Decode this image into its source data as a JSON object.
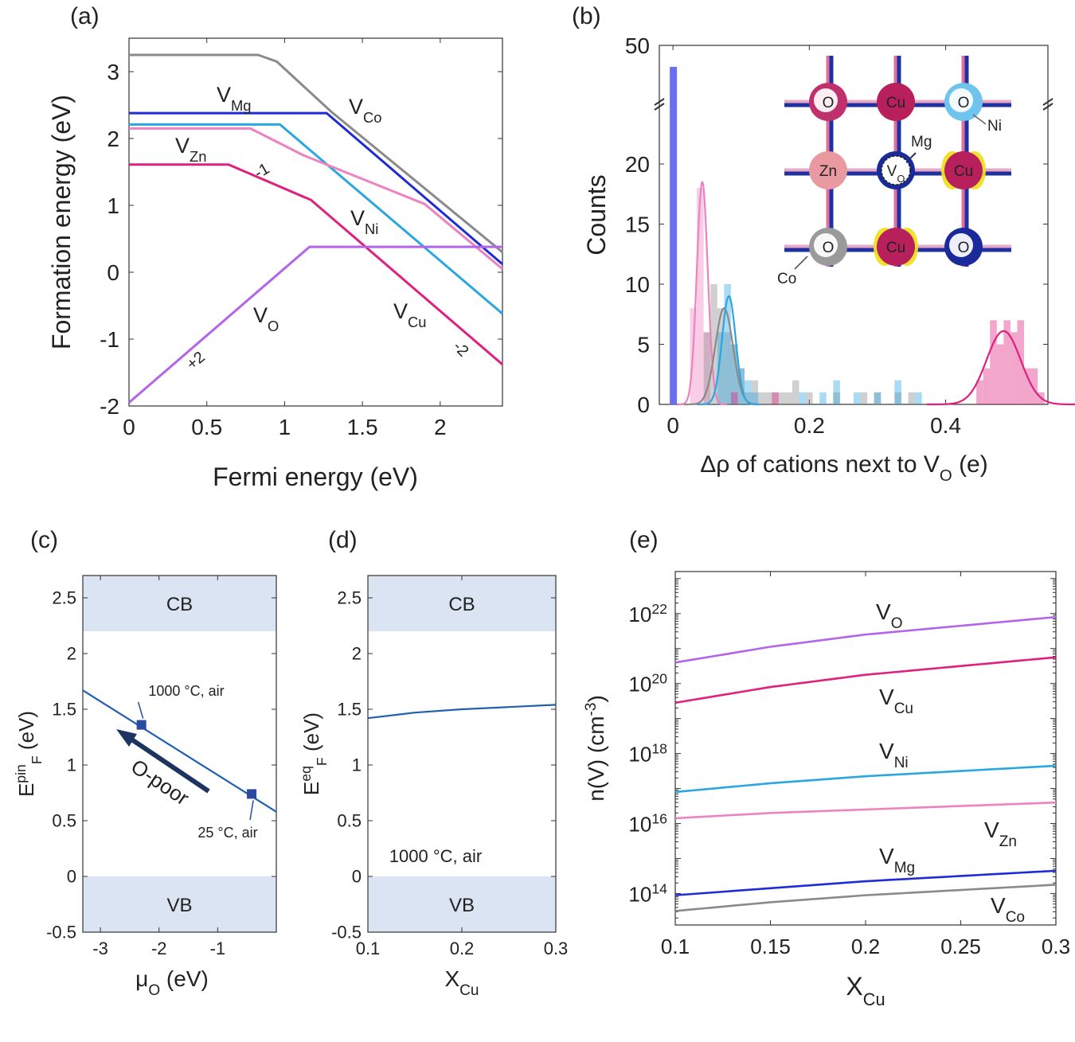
{
  "colors": {
    "Mg": "#1f2bd6",
    "Co": "#8a8a8a",
    "Zn": "#ee82c0",
    "Ni": "#2aa6e0",
    "Cu": "#e0207f",
    "O": "#b464e8",
    "band": "#dbe4f2",
    "blue": "#2060b0",
    "navy": "#1d3461",
    "marker": "#2a4aa0",
    "highlight": "#2040d0"
  },
  "chart_data": [
    {
      "id": "a",
      "panel_label": "(a)",
      "type": "line",
      "xlabel": "Fermi energy (eV)",
      "ylabel": "Formation energy (eV)",
      "xlim": [
        0,
        2.4
      ],
      "ylim": [
        -2,
        3.5
      ],
      "xticks": [
        0,
        0.5,
        1,
        1.5,
        2
      ],
      "xtick_labels": [
        "0",
        "0.5",
        "1",
        "1.5",
        "2"
      ],
      "yticks": [
        -2,
        -1,
        0,
        1,
        2,
        3
      ],
      "ytick_labels": [
        "-2",
        "-1",
        "0",
        "1",
        "2",
        "3"
      ],
      "series": [
        {
          "name": "V_Co",
          "label_main": "V",
          "label_sub": "Co",
          "color": "Co",
          "points": [
            [
              0,
              3.25
            ],
            [
              0.83,
              3.25
            ],
            [
              0.95,
              3.15
            ],
            [
              1.3,
              2.4
            ],
            [
              2.4,
              0.3
            ]
          ]
        },
        {
          "name": "V_Mg",
          "label_main": "V",
          "label_sub": "Mg",
          "color": "Mg",
          "points": [
            [
              0,
              2.38
            ],
            [
              1.27,
              2.38
            ],
            [
              2.4,
              0.12
            ]
          ]
        },
        {
          "name": "V_Ni",
          "label_main": "V",
          "label_sub": "Ni",
          "color": "Ni",
          "points": [
            [
              0,
              2.21
            ],
            [
              0.97,
              2.21
            ],
            [
              2.4,
              -0.62
            ]
          ]
        },
        {
          "name": "V_Zn",
          "label_main": "V",
          "label_sub": "Zn",
          "color": "Zn",
          "points": [
            [
              0,
              2.15
            ],
            [
              0.78,
              2.15
            ],
            [
              1.12,
              1.75
            ],
            [
              1.9,
              1.02
            ],
            [
              2.4,
              0.05
            ]
          ]
        },
        {
          "name": "V_Cu",
          "label_main": "V",
          "label_sub": "Cu",
          "color": "Cu",
          "points": [
            [
              0,
              1.61
            ],
            [
              0.64,
              1.61
            ],
            [
              1.17,
              1.08
            ],
            [
              2.4,
              -1.38
            ]
          ]
        },
        {
          "name": "V_O",
          "label_main": "V",
          "label_sub": "O",
          "color": "O",
          "points": [
            [
              0,
              -1.95
            ],
            [
              1.16,
              0.38
            ],
            [
              2.4,
              0.38
            ]
          ]
        }
      ],
      "annotations": [
        {
          "text": "-1",
          "x": 0.87,
          "y": 1.45,
          "color": "Cu",
          "rotate": -30
        },
        {
          "text": "-2",
          "x": 2.11,
          "y": -1.2,
          "color": "Cu",
          "rotate": 45
        },
        {
          "text": "+2",
          "x": 0.45,
          "y": -1.38,
          "color": "O",
          "rotate": -40
        }
      ]
    },
    {
      "id": "b",
      "panel_label": "(b)",
      "type": "histogram",
      "xlabel_prefix": "Δρ of cations next to V",
      "xlabel_sub": "O",
      "xlabel_suffix": " (e)",
      "ylabel": "Counts",
      "xlim": [
        -0.02,
        0.55
      ],
      "xticks": [
        0,
        0.2,
        0.4
      ],
      "xtick_labels": [
        "0",
        "0.2",
        "0.4"
      ],
      "yticks": [
        0,
        5,
        10,
        15,
        20,
        50
      ],
      "ytick_labels": [
        "0",
        "5",
        "10",
        "15",
        "20",
        "50"
      ],
      "axis_break": "y between 20 and 50",
      "tall_bar": {
        "x": 0.0,
        "counts": 40,
        "color": "#6a6ff0"
      },
      "bin_width": 0.01,
      "histograms": [
        {
          "name": "Zn",
          "color": "Zn",
          "bins": [
            0.03,
            0.04,
            0.05
          ],
          "counts": [
            8,
            18,
            6
          ]
        },
        {
          "name": "Co",
          "color": "Co",
          "bins": [
            0.05,
            0.06,
            0.07,
            0.08,
            0.09,
            0.1,
            0.11,
            0.12,
            0.13,
            0.14,
            0.15,
            0.16,
            0.17,
            0.18,
            0.2,
            0.24,
            0.28,
            0.3,
            0.33,
            0.35
          ],
          "counts": [
            6,
            10,
            8,
            6,
            5,
            3,
            1,
            2,
            1,
            1,
            1,
            1,
            1,
            2,
            1,
            1,
            1,
            1,
            1,
            1
          ]
        },
        {
          "name": "Ni",
          "color": "Ni",
          "bins": [
            0.07,
            0.08,
            0.09,
            0.1,
            0.11,
            0.12,
            0.19,
            0.22,
            0.24,
            0.27,
            0.3,
            0.33,
            0.36
          ],
          "counts": [
            6,
            10,
            5,
            3,
            2,
            1,
            1,
            1,
            2,
            1,
            1,
            2,
            1
          ]
        },
        {
          "name": "Cu",
          "color": "Cu",
          "bins": [
            0.09,
            0.15,
            0.45,
            0.46,
            0.47,
            0.48,
            0.49,
            0.5,
            0.51,
            0.52,
            0.53,
            0.54
          ],
          "counts": [
            1,
            1,
            2,
            3,
            7,
            5,
            7,
            6,
            7,
            3,
            3,
            1
          ]
        }
      ],
      "fits": [
        {
          "name": "Zn",
          "color": "Zn",
          "mu": 0.043,
          "sigma": 0.008,
          "amp": 18.5
        },
        {
          "name": "Co",
          "color": "Co",
          "mu": 0.075,
          "sigma": 0.013,
          "amp": 8
        },
        {
          "name": "Ni",
          "color": "Ni",
          "mu": 0.082,
          "sigma": 0.01,
          "amp": 9
        },
        {
          "name": "Cu",
          "color": "Cu",
          "mu": 0.485,
          "sigma": 0.025,
          "amp": 6.1
        }
      ],
      "inset": {
        "atoms": [
          {
            "label": "O",
            "kind": "O-mix"
          },
          {
            "label": "Cu",
            "kind": "Cu"
          },
          {
            "label": "O",
            "kind": "O-ni"
          },
          {
            "label": "Zn",
            "kind": "Zn"
          },
          {
            "label": "V",
            "label_sub": "O",
            "kind": "vac"
          },
          {
            "label": "Cu",
            "kind": "Cu-lobe"
          },
          {
            "label": "O",
            "kind": "O-co"
          },
          {
            "label": "Cu",
            "kind": "Cu-lobe"
          },
          {
            "label": "O",
            "kind": "O-mg"
          }
        ],
        "callouts": {
          "ni": "Ni",
          "mg": "Mg",
          "co": "Co"
        }
      }
    },
    {
      "id": "c",
      "panel_label": "(c)",
      "type": "line",
      "xlabel_main": "μ",
      "xlabel_sub": "O",
      "xlabel_suffix": " (eV)",
      "ylabel_main": "E",
      "ylabel_sup": "pin",
      "ylabel_sub": "F",
      "ylabel_suffix": " (eV)",
      "xlim": [
        -3.3,
        0
      ],
      "ylim": [
        -0.5,
        2.7
      ],
      "xticks": [
        -3,
        -2,
        -1
      ],
      "xtick_labels": [
        "-3",
        "-2",
        "-1"
      ],
      "yticks": [
        -0.5,
        0,
        0.5,
        1,
        1.5,
        2,
        2.5
      ],
      "ytick_labels": [
        "-0.5",
        "0",
        "0.5",
        "1",
        "1.5",
        "2",
        "2.5"
      ],
      "bands": [
        {
          "label": "CB",
          "from": 2.2,
          "to": 2.7
        },
        {
          "label": "VB",
          "from": -0.5,
          "to": 0
        }
      ],
      "series": [
        {
          "name": "E_F_pin",
          "color": "blue",
          "points": [
            [
              -3.3,
              1.67
            ],
            [
              0,
              0.58
            ]
          ]
        }
      ],
      "markers": [
        {
          "x": -2.3,
          "y": 1.36,
          "label": "1000 °C, air"
        },
        {
          "x": -0.42,
          "y": 0.74,
          "label": "25 °C, air"
        }
      ],
      "arrow_label": "O-poor"
    },
    {
      "id": "d",
      "panel_label": "(d)",
      "type": "line",
      "xlabel_main": "X",
      "xlabel_sub": "Cu",
      "ylabel_main": "E",
      "ylabel_sup": "eq",
      "ylabel_sub": "F",
      "ylabel_suffix": " (eV)",
      "xlim": [
        0.1,
        0.3
      ],
      "ylim": [
        -0.5,
        2.7
      ],
      "xticks": [
        0.1,
        0.2,
        0.3
      ],
      "xtick_labels": [
        "0.1",
        "0.2",
        "0.3"
      ],
      "yticks": [
        -0.5,
        0,
        0.5,
        1,
        1.5,
        2,
        2.5
      ],
      "ytick_labels": [
        "-0.5",
        "0",
        "0.5",
        "1",
        "1.5",
        "2",
        "2.5"
      ],
      "bands": [
        {
          "label": "CB",
          "from": 2.2,
          "to": 2.7
        },
        {
          "label": "VB",
          "from": -0.5,
          "to": 0
        }
      ],
      "series": [
        {
          "name": "E_F_eq",
          "color": "blue",
          "points": [
            [
              0.1,
              1.42
            ],
            [
              0.15,
              1.47
            ],
            [
              0.2,
              1.5
            ],
            [
              0.25,
              1.52
            ],
            [
              0.3,
              1.54
            ]
          ]
        }
      ],
      "annotation": "1000 °C, air"
    },
    {
      "id": "e",
      "panel_label": "(e)",
      "type": "line",
      "yscale": "log",
      "xlabel_main": "X",
      "xlabel_sub": "Cu",
      "ylabel_main": "n(V) (cm",
      "ylabel_sup": "-3",
      "ylabel_suffix": ")",
      "xlim": [
        0.1,
        0.3
      ],
      "ylog_range": [
        13.1,
        23.2
      ],
      "xticks": [
        0.1,
        0.15,
        0.2,
        0.25,
        0.3
      ],
      "xtick_labels": [
        "0.1",
        "0.15",
        "0.2",
        "0.25",
        "0.3"
      ],
      "yticks_exp": [
        14,
        16,
        18,
        20,
        22
      ],
      "ytick_base": "10",
      "series": [
        {
          "name": "V_O",
          "label_main": "V",
          "label_sub": "O",
          "color": "O",
          "log10_points": [
            [
              0.1,
              20.6
            ],
            [
              0.15,
              21.05
            ],
            [
              0.2,
              21.4
            ],
            [
              0.25,
              21.65
            ],
            [
              0.3,
              21.9
            ]
          ]
        },
        {
          "name": "V_Cu",
          "label_main": "V",
          "label_sub": "Cu",
          "color": "Cu",
          "log10_points": [
            [
              0.1,
              19.45
            ],
            [
              0.15,
              19.9
            ],
            [
              0.2,
              20.25
            ],
            [
              0.25,
              20.5
            ],
            [
              0.3,
              20.75
            ]
          ]
        },
        {
          "name": "V_Ni",
          "label_main": "V",
          "label_sub": "Ni",
          "color": "Ni",
          "log10_points": [
            [
              0.1,
              16.9
            ],
            [
              0.15,
              17.15
            ],
            [
              0.2,
              17.35
            ],
            [
              0.25,
              17.5
            ],
            [
              0.3,
              17.65
            ]
          ]
        },
        {
          "name": "V_Zn",
          "label_main": "V",
          "label_sub": "Zn",
          "color": "Zn",
          "log10_points": [
            [
              0.1,
              16.15
            ],
            [
              0.15,
              16.3
            ],
            [
              0.2,
              16.4
            ],
            [
              0.25,
              16.5
            ],
            [
              0.3,
              16.6
            ]
          ]
        },
        {
          "name": "V_Mg",
          "label_main": "V",
          "label_sub": "Mg",
          "color": "Mg",
          "log10_points": [
            [
              0.1,
              13.95
            ],
            [
              0.15,
              14.15
            ],
            [
              0.2,
              14.35
            ],
            [
              0.25,
              14.5
            ],
            [
              0.3,
              14.65
            ]
          ]
        },
        {
          "name": "V_Co",
          "label_main": "V",
          "label_sub": "Co",
          "color": "Co",
          "log10_points": [
            [
              0.1,
              13.5
            ],
            [
              0.15,
              13.75
            ],
            [
              0.2,
              13.95
            ],
            [
              0.25,
              14.1
            ],
            [
              0.3,
              14.25
            ]
          ]
        }
      ]
    }
  ]
}
